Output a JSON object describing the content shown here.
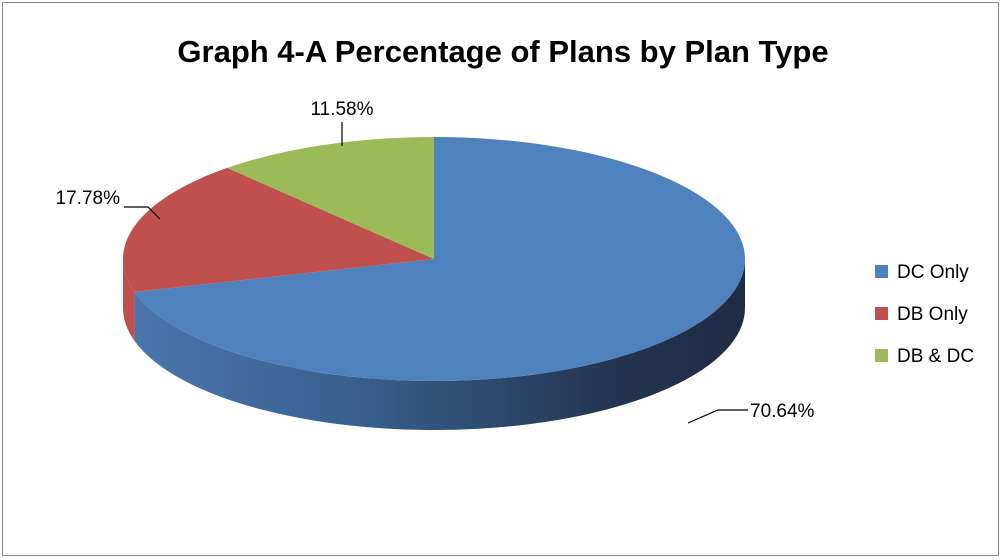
{
  "chart_data": {
    "type": "pie",
    "title": "Graph 4-A Percentage of Plans by Plan Type",
    "categories": [
      "DC Only",
      "DB Only",
      "DB & DC"
    ],
    "values": [
      70.64,
      17.78,
      11.58
    ],
    "data_labels": [
      "70.64%",
      "17.78%",
      "11.58%"
    ],
    "colors": [
      "#4f81bd",
      "#c0504d",
      "#9bbb59"
    ],
    "legend_position": "right",
    "style": "3d"
  }
}
